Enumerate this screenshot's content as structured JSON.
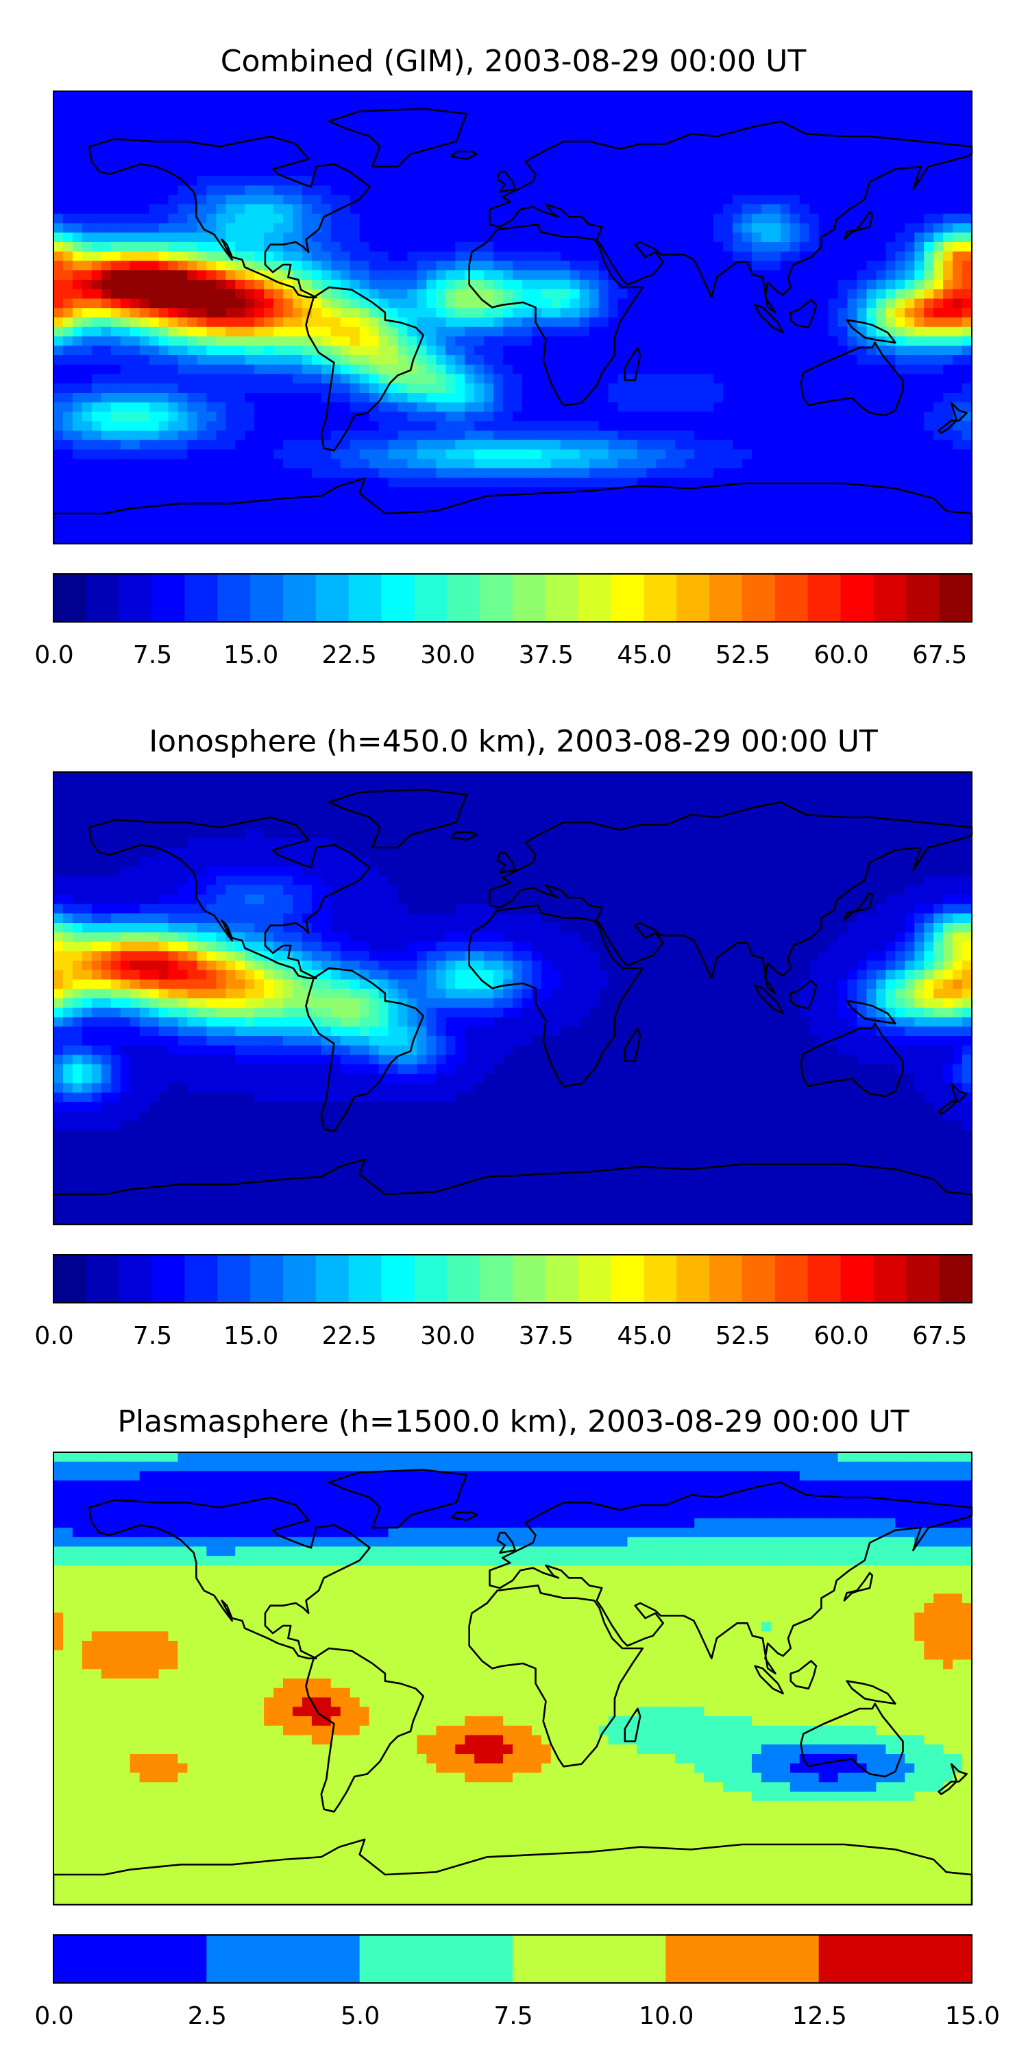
{
  "chart_data": [
    {
      "type": "heatmap",
      "title": "Combined (GIM), 2003-08-29 00:00 UT",
      "projection": "plate-carree world map with coastlines",
      "colormap": "jet",
      "colorbar": {
        "min": 0,
        "max": 70,
        "step": 2.5,
        "tick_labels": [
          "0.0",
          "7.5",
          "15.0",
          "22.5",
          "30.0",
          "37.5",
          "45.0",
          "52.5",
          "60.0",
          "67.5"
        ]
      },
      "features": [
        {
          "region": "central Pacific, north of equator",
          "lon": -140,
          "lat": 12,
          "value": 62.5
        },
        {
          "region": "east of Philippines / western Pacific",
          "lon": 175,
          "lat": 0,
          "value": 52.5
        },
        {
          "region": "tropical South America",
          "lon": -60,
          "lat": -8,
          "value": 40
        },
        {
          "region": "equatorial Atlantic",
          "lon": -15,
          "lat": 8,
          "value": 37.5
        },
        {
          "region": "Indian Ocean",
          "lon": 60,
          "lat": -5,
          "value": 5
        },
        {
          "region": "Antarctica",
          "lon": 0,
          "lat": -80,
          "value": 7.5
        }
      ]
    },
    {
      "type": "heatmap",
      "title": "Ionosphere  (h=450.0 km), 2003-08-29 00:00 UT",
      "projection": "plate-carree world map with coastlines",
      "colormap": "jet",
      "colorbar": {
        "min": 0,
        "max": 70,
        "step": 2.5,
        "tick_labels": [
          "0.0",
          "7.5",
          "15.0",
          "22.5",
          "30.0",
          "37.5",
          "45.0",
          "52.5",
          "60.0",
          "67.5"
        ]
      },
      "features": [
        {
          "region": "central Pacific, north of equator",
          "lon": -140,
          "lat": 12,
          "value": 55
        },
        {
          "region": "western Pacific",
          "lon": 175,
          "lat": 0,
          "value": 45
        },
        {
          "region": "tropical South America",
          "lon": -60,
          "lat": -5,
          "value": 30
        },
        {
          "region": "equatorial Atlantic",
          "lon": -15,
          "lat": 8,
          "value": 27.5
        },
        {
          "region": "Indian Ocean",
          "lon": 60,
          "lat": -5,
          "value": 2.5
        }
      ]
    },
    {
      "type": "heatmap",
      "title": "Plasmasphere (h=1500.0 km), 2003-08-29 00:00 UT",
      "projection": "plate-carree world map with coastlines",
      "colormap": "jet",
      "colorbar": {
        "min": 0,
        "max": 15,
        "step": 2.5,
        "tick_labels": [
          "0.0",
          "2.5",
          "5.0",
          "7.5",
          "10.0",
          "12.5",
          "15.0"
        ]
      },
      "features": [
        {
          "region": "north polar band",
          "lon": 0,
          "lat": 65,
          "value": 2.5
        },
        {
          "region": "tropical South America",
          "lon": -75,
          "lat": -12,
          "value": 13.75
        },
        {
          "region": "South Atlantic",
          "lon": -10,
          "lat": -28,
          "value": 13.75
        },
        {
          "region": "south of Australia",
          "lon": 125,
          "lat": -35,
          "value": 1.25
        },
        {
          "region": "western Pacific",
          "lon": 170,
          "lat": 20,
          "value": 11.25
        }
      ]
    }
  ],
  "colors": {
    "jet_stops": [
      "#00007f",
      "#0000ff",
      "#007fff",
      "#00ffff",
      "#7fff7f",
      "#ffff00",
      "#ff7f00",
      "#ff0000",
      "#7f0000"
    ]
  }
}
